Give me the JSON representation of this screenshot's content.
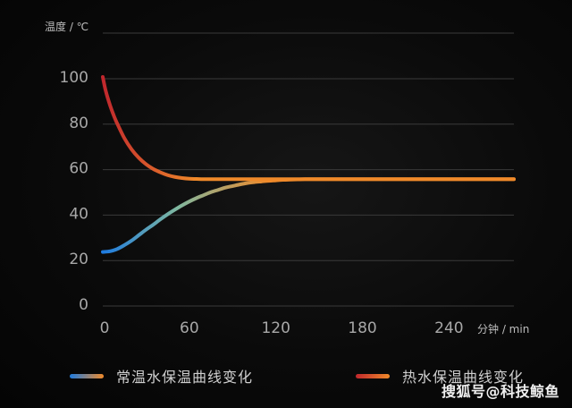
{
  "chart_data": {
    "type": "line",
    "ylabel": "温度 / ℃",
    "xlabel": "分钟 / min",
    "x_ticks": [
      0,
      60,
      120,
      180,
      240
    ],
    "y_ticks": [
      0,
      20,
      40,
      60,
      80,
      100
    ],
    "xlim": [
      0,
      285
    ],
    "ylim": [
      0,
      100
    ],
    "grid": true,
    "legend_position": "bottom",
    "series": [
      {
        "name": "常温水保温曲线变化",
        "color_start": "#1e7be0",
        "color_end": "#f08a2a",
        "x": [
          0,
          5,
          10,
          15,
          20,
          25,
          30,
          35,
          40,
          45,
          50,
          55,
          60,
          65,
          70,
          75,
          80,
          85,
          90,
          95,
          100,
          105,
          110,
          115,
          120,
          125,
          130,
          135,
          140,
          150,
          160,
          180,
          200,
          220,
          240,
          260,
          285
        ],
        "y": [
          23,
          23.3,
          24.3,
          26,
          28,
          30.4,
          32.8,
          35,
          37.4,
          39.6,
          41.6,
          43.5,
          45.2,
          46.7,
          48,
          49.3,
          50.3,
          51.3,
          52,
          52.7,
          53.3,
          53.7,
          54,
          54.3,
          54.5,
          54.7,
          54.8,
          54.9,
          55,
          55,
          55,
          55,
          55,
          55,
          55,
          55,
          55
        ]
      },
      {
        "name": "热水保温曲线变化",
        "color_start": "#c0272d",
        "color_end": "#f08a2a",
        "x": [
          0,
          2,
          5,
          8,
          10,
          15,
          20,
          25,
          30,
          35,
          40,
          45,
          50,
          55,
          60,
          65,
          70,
          80,
          100,
          120,
          140,
          160,
          180,
          200,
          220,
          240,
          260,
          285
        ],
        "y": [
          100,
          94,
          87.6,
          82.4,
          79.5,
          73,
          68.1,
          64.4,
          61.6,
          59.5,
          58,
          56.8,
          56,
          55.5,
          55.2,
          55.1,
          55,
          55,
          55,
          55,
          55,
          55,
          55,
          55,
          55,
          55,
          55,
          55
        ]
      }
    ]
  },
  "legend": {
    "items": [
      {
        "label": "常温水保温曲线变化",
        "swatch_from": "#1e7be0",
        "swatch_to": "#f08a2a"
      },
      {
        "label": "热水保温曲线变化",
        "swatch_from": "#c0272d",
        "swatch_to": "#f08a2a"
      }
    ]
  },
  "watermark": "搜狐号@科技鲸鱼"
}
